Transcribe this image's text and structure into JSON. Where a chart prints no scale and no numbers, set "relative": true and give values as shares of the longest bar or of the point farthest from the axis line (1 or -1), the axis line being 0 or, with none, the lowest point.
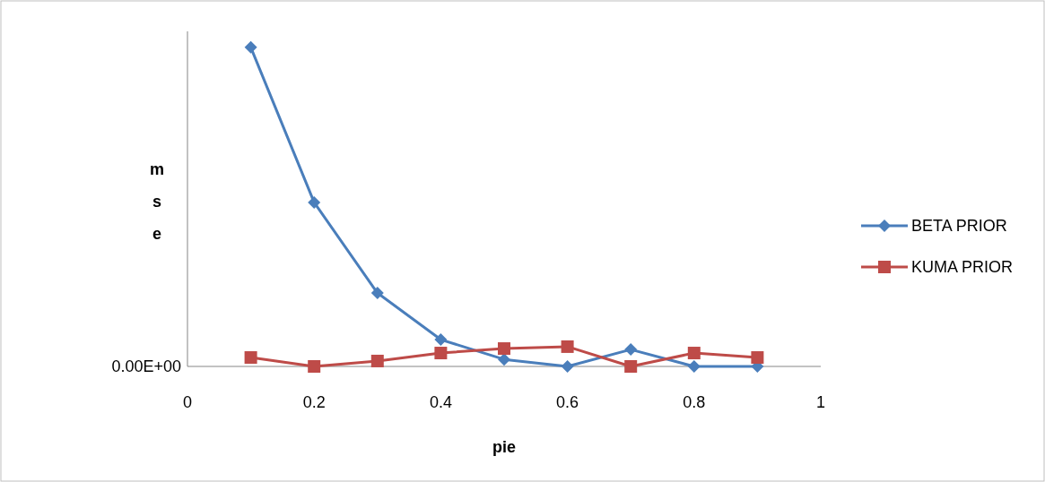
{
  "chart_data": {
    "type": "line",
    "relative": true,
    "xlabel": "pie",
    "ylabel": "mse",
    "x": [
      0.1,
      0.2,
      0.3,
      0.4,
      0.5,
      0.6,
      0.7,
      0.8,
      0.9
    ],
    "xlim": [
      0,
      1
    ],
    "xticks": [
      0,
      0.2,
      0.4,
      0.6,
      0.8,
      1
    ],
    "series": [
      {
        "name": "BETA PRIOR",
        "color": "#4a7ebb",
        "marker": "diamond",
        "values": [
          1,
          0.514,
          0.23,
          0.084,
          0.022,
          0,
          0.053,
          0,
          0
        ]
      },
      {
        "name": "KUMA PRIOR",
        "color": "#be4b48",
        "marker": "square",
        "values": [
          0.028,
          0,
          0.017,
          0.042,
          0.056,
          0.062,
          0,
          0.042,
          0.028
        ]
      }
    ],
    "annotations": [
      "0.00E+00"
    ],
    "grid": false,
    "legend": "right"
  }
}
